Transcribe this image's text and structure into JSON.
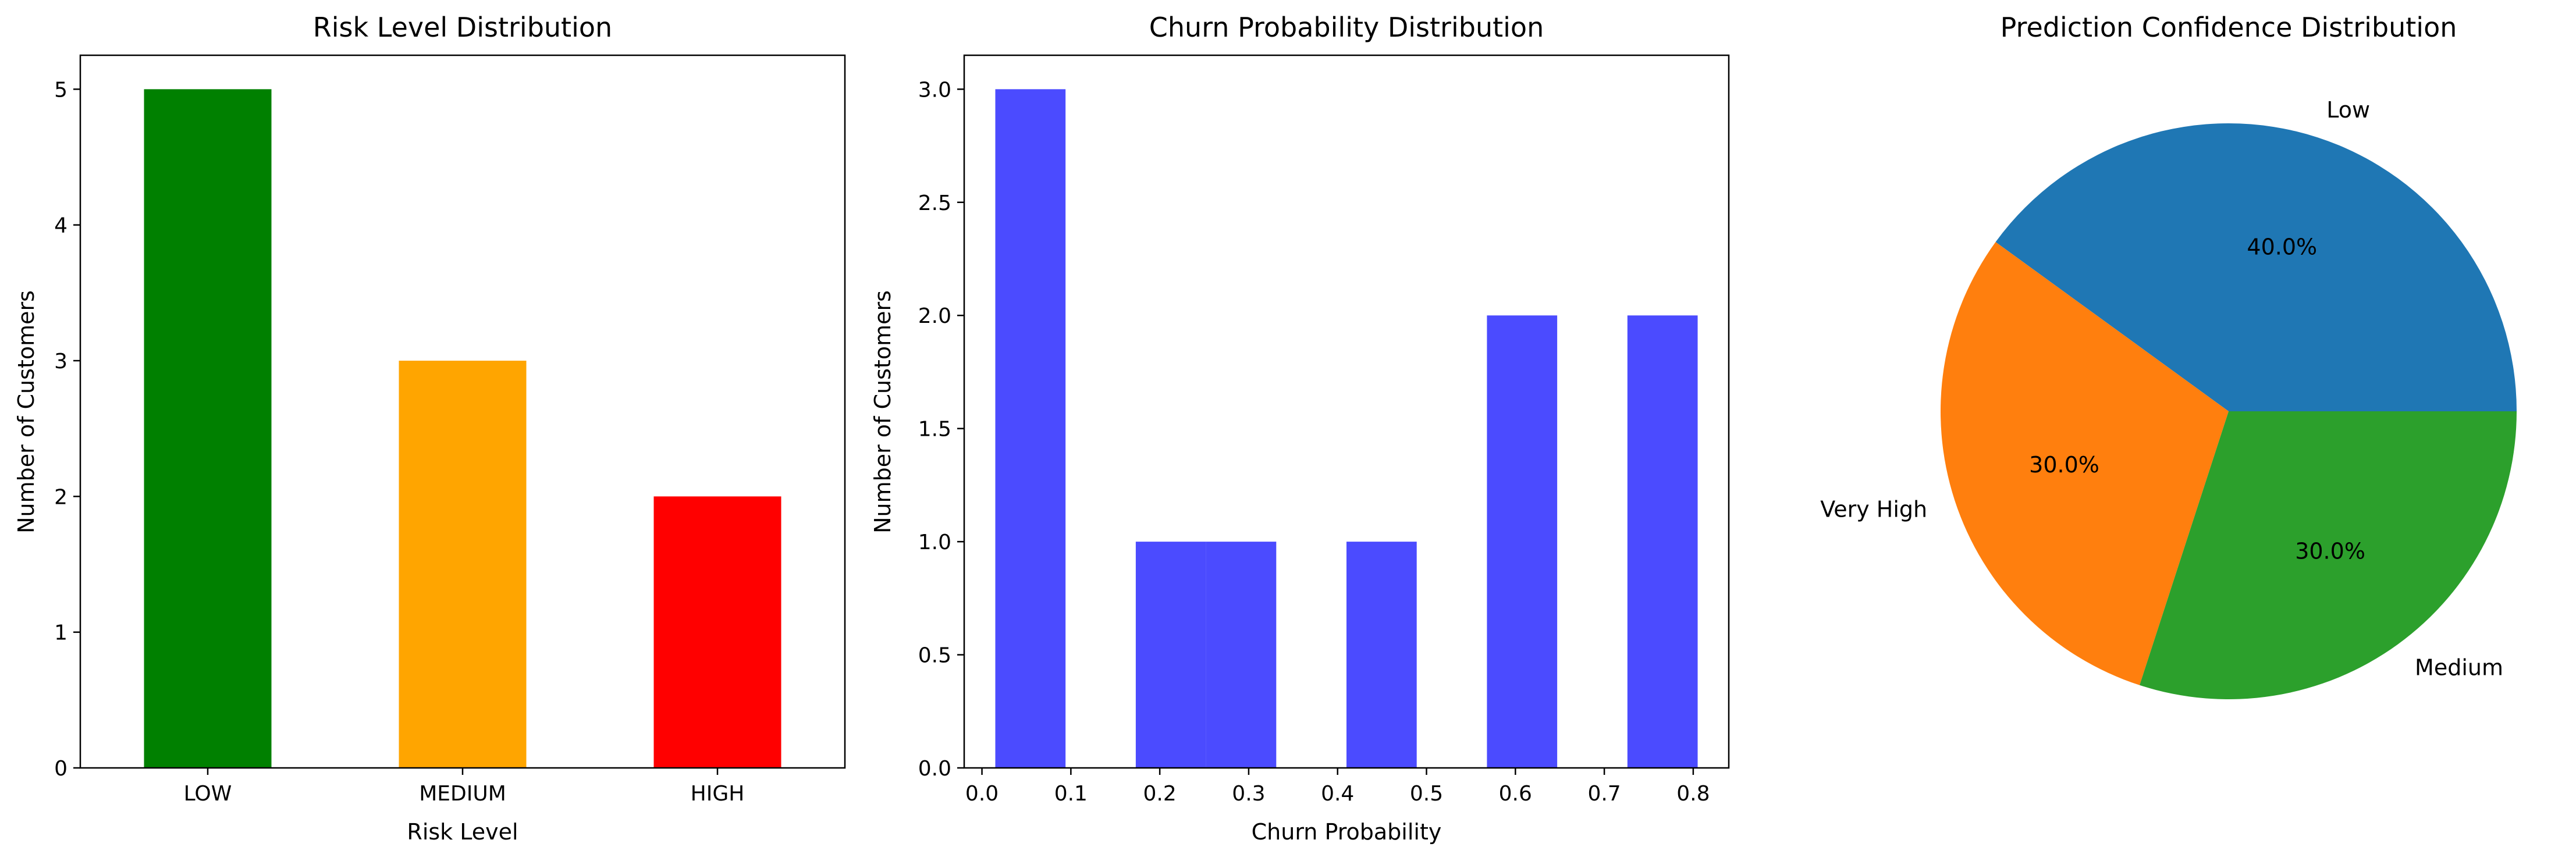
{
  "chart_data": [
    {
      "type": "bar",
      "title": "Risk Level Distribution",
      "xlabel": "Risk Level",
      "ylabel": "Number of Customers",
      "categories": [
        "LOW",
        "MEDIUM",
        "HIGH"
      ],
      "values": [
        5,
        3,
        2
      ],
      "colors": [
        "#008000",
        "#ffa500",
        "#ff0000"
      ],
      "ylim": [
        0,
        5.25
      ],
      "yticks": [
        0,
        1,
        2,
        3,
        4,
        5
      ],
      "grid": false
    },
    {
      "type": "bar",
      "subtype": "histogram",
      "title": "Churn Probability Distribution",
      "xlabel": "Churn Probability",
      "ylabel": "Number of Customers",
      "bins": [
        {
          "x0": 0.015,
          "x1": 0.094,
          "count": 3
        },
        {
          "x0": 0.173,
          "x1": 0.252,
          "count": 1
        },
        {
          "x0": 0.252,
          "x1": 0.331,
          "count": 1
        },
        {
          "x0": 0.41,
          "x1": 0.489,
          "count": 1
        },
        {
          "x0": 0.568,
          "x1": 0.647,
          "count": 2
        },
        {
          "x0": 0.726,
          "x1": 0.805,
          "count": 2
        }
      ],
      "color": "#4b4bff",
      "xlim": [
        -0.02,
        0.84
      ],
      "ylim": [
        0,
        3.15
      ],
      "xticks": [
        "0.0",
        "0.1",
        "0.2",
        "0.3",
        "0.4",
        "0.5",
        "0.6",
        "0.7",
        "0.8"
      ],
      "yticks": [
        "0.0",
        "0.5",
        "1.0",
        "1.5",
        "2.0",
        "2.5",
        "3.0"
      ],
      "grid": false
    },
    {
      "type": "pie",
      "title": "Prediction Confidence Distribution",
      "slices": [
        {
          "label": "Low",
          "value": 40.0,
          "pct_label": "40.0%",
          "color": "#1f77b4"
        },
        {
          "label": "Very High",
          "value": 30.0,
          "pct_label": "30.0%",
          "color": "#ff7f0e"
        },
        {
          "label": "Medium",
          "value": 30.0,
          "pct_label": "30.0%",
          "color": "#2ca02c"
        }
      ]
    }
  ]
}
